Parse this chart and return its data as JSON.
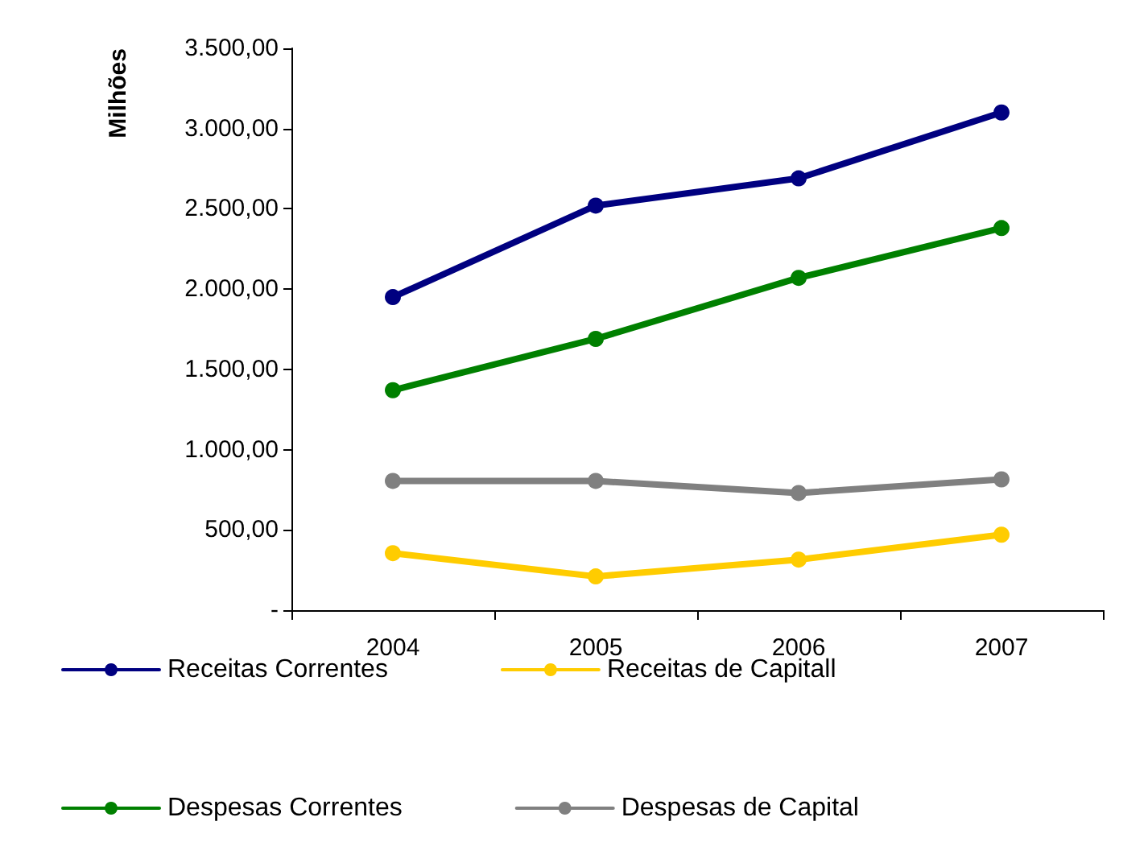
{
  "chart_data": {
    "type": "line",
    "ylabel": "Milhões",
    "categories": [
      "2004",
      "2005",
      "2006",
      "2007"
    ],
    "series": [
      {
        "name": "Receitas Correntes",
        "color": "#000080",
        "values": [
          1950,
          2520,
          2690,
          3100
        ]
      },
      {
        "name": "Receitas de Capitall",
        "color": "#ffcc00",
        "values": [
          355,
          210,
          315,
          470
        ]
      },
      {
        "name": "Despesas Correntes",
        "color": "#008000",
        "values": [
          1370,
          1690,
          2070,
          2380
        ]
      },
      {
        "name": "Despesas de Capital",
        "color": "#808080",
        "values": [
          805,
          805,
          730,
          815
        ]
      }
    ],
    "ylim": [
      0,
      3500
    ],
    "yticks": [
      {
        "value": 0,
        "label": "-"
      },
      {
        "value": 500,
        "label": "500,00"
      },
      {
        "value": 1000,
        "label": "1.000,00"
      },
      {
        "value": 1500,
        "label": "1.500,00"
      },
      {
        "value": 2000,
        "label": "2.000,00"
      },
      {
        "value": 2500,
        "label": "2.500,00"
      },
      {
        "value": 3000,
        "label": "3.000,00"
      },
      {
        "value": 3500,
        "label": "3.500,00"
      }
    ],
    "grid": false,
    "legend": "bottom",
    "marker": "circle",
    "line_style": "solid"
  }
}
